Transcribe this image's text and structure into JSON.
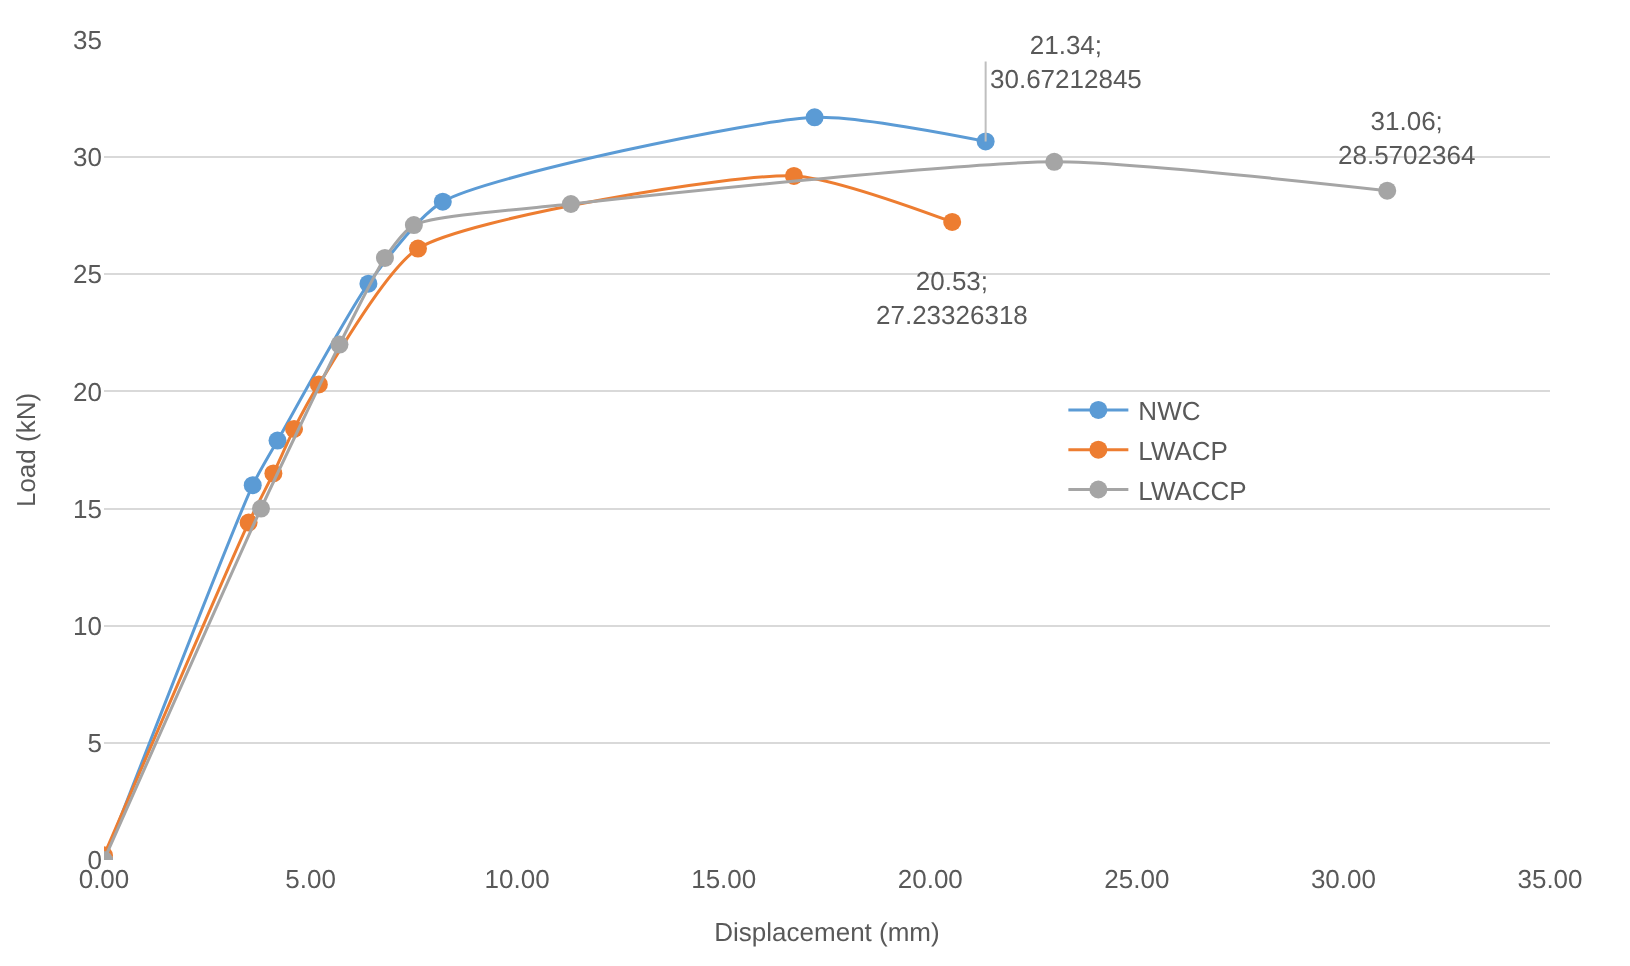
{
  "chart_data": {
    "type": "line",
    "xlabel": "Displacement (mm)",
    "ylabel": "Load (kN)",
    "xlim": [
      0,
      35
    ],
    "xticks": [
      {
        "value": 0,
        "label": "0.00"
      },
      {
        "value": 5,
        "label": "5.00"
      },
      {
        "value": 10,
        "label": "10.00"
      },
      {
        "value": 15,
        "label": "15.00"
      },
      {
        "value": 20,
        "label": "20.00"
      },
      {
        "value": 25,
        "label": "25.00"
      },
      {
        "value": 30,
        "label": "30.00"
      },
      {
        "value": 35,
        "label": "35.00"
      }
    ],
    "ylim": [
      0,
      35
    ],
    "yticks": [
      0,
      5,
      10,
      15,
      20,
      25,
      30,
      35
    ],
    "grid": "y",
    "legend": "right",
    "marker": "circle",
    "series": [
      {
        "name": "NWC",
        "color": "#5b9bd5",
        "x": [
          0,
          3.6,
          4.2,
          6.4,
          8.2,
          17.2,
          21.34
        ],
        "values": [
          0,
          16.0,
          17.9,
          24.6,
          28.1,
          31.7,
          30.67212845
        ]
      },
      {
        "name": "LWACP",
        "color": "#ed7d31",
        "x": [
          0,
          3.5,
          4.1,
          4.6,
          5.2,
          7.6,
          16.7,
          20.53
        ],
        "values": [
          0.2,
          14.4,
          16.5,
          18.4,
          20.3,
          26.1,
          29.2,
          27.23326318
        ]
      },
      {
        "name": "LWACCP",
        "color": "#a5a5a5",
        "x": [
          0,
          3.8,
          5.7,
          6.8,
          7.5,
          11.3,
          23.0,
          31.06
        ],
        "values": [
          0,
          15.0,
          22.0,
          25.7,
          27.1,
          28.0,
          29.8,
          28.5702364
        ]
      }
    ],
    "annotations": [
      {
        "text": "21.34;\n30.67212845",
        "x": 21.34,
        "y": 30.67212845
      },
      {
        "text": "20.53;\n27.23326318",
        "x": 20.53,
        "y": 27.23326318
      },
      {
        "text": "31.06;\n28.5702364",
        "x": 31.06,
        "y": 28.5702364
      }
    ]
  }
}
